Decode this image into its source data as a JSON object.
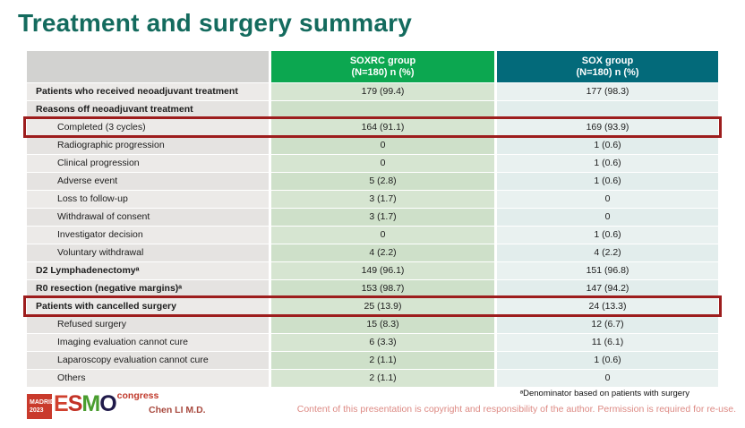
{
  "title": "Treatment and surgery summary",
  "table": {
    "columns": [
      {
        "name": "",
        "sub": ""
      },
      {
        "name": "SOXRC group",
        "sub": "(N=180)  n (%)"
      },
      {
        "name": "SOX group",
        "sub": "(N=180)  n (%)"
      }
    ],
    "rows": [
      {
        "label": "Patients who received neoadjuvant treatment",
        "soxrc": "179 (99.4)",
        "sox": "177 (98.3)",
        "bold": true,
        "highlight": false
      },
      {
        "label": "Reasons off neoadjuvant treatment",
        "soxrc": "",
        "sox": "",
        "bold": true,
        "highlight": false
      },
      {
        "label": "Completed (3 cycles)",
        "soxrc": "164 (91.1)",
        "sox": "169 (93.9)",
        "bold": false,
        "highlight": true
      },
      {
        "label": "Radiographic progression",
        "soxrc": "0",
        "sox": "1 (0.6)",
        "bold": false,
        "highlight": false
      },
      {
        "label": "Clinical progression",
        "soxrc": "0",
        "sox": "1 (0.6)",
        "bold": false,
        "highlight": false
      },
      {
        "label": "Adverse event",
        "soxrc": "5 (2.8)",
        "sox": "1 (0.6)",
        "bold": false,
        "highlight": false
      },
      {
        "label": "Loss to follow-up",
        "soxrc": "3 (1.7)",
        "sox": "0",
        "bold": false,
        "highlight": false
      },
      {
        "label": "Withdrawal of consent",
        "soxrc": "3 (1.7)",
        "sox": "0",
        "bold": false,
        "highlight": false
      },
      {
        "label": "Investigator decision",
        "soxrc": "0",
        "sox": "1 (0.6)",
        "bold": false,
        "highlight": false
      },
      {
        "label": "Voluntary withdrawal",
        "soxrc": "4 (2.2)",
        "sox": "4 (2.2)",
        "bold": false,
        "highlight": false
      },
      {
        "label": "D2 Lymphadenectomyᵃ",
        "soxrc": "149 (96.1)",
        "sox": "151 (96.8)",
        "bold": true,
        "highlight": false
      },
      {
        "label": "R0 resection (negative margins)ᵃ",
        "soxrc": "153 (98.7)",
        "sox": "147 (94.2)",
        "bold": true,
        "highlight": false
      },
      {
        "label": "Patients with cancelled surgery",
        "soxrc": "25 (13.9)",
        "sox": "24 (13.3)",
        "bold": true,
        "highlight": true
      },
      {
        "label": "Refused surgery",
        "soxrc": "15 (8.3)",
        "sox": "12 (6.7)",
        "bold": false,
        "highlight": false
      },
      {
        "label": "Imaging evaluation cannot cure",
        "soxrc": "6 (3.3)",
        "sox": "11 (6.1)",
        "bold": false,
        "highlight": false
      },
      {
        "label": "Laparoscopy evaluation cannot cure",
        "soxrc": "2 (1.1)",
        "sox": "1 (0.6)",
        "bold": false,
        "highlight": false
      },
      {
        "label": "Others",
        "soxrc": "2 (1.1)",
        "sox": "0",
        "bold": false,
        "highlight": false
      }
    ]
  },
  "footer": {
    "logo": {
      "badge_line1": "MADRID",
      "badge_line2": "2023",
      "letter_e": "E",
      "letter_s": "S",
      "letter_m": "M",
      "letter_o": "O",
      "congress": "congress"
    },
    "author": "Chen LI M.D.",
    "footnote": "ᵃDenominator based on patients with surgery",
    "copyright": "Content of this presentation is copyright and responsibility of the author. Permission is required for re-use."
  },
  "colors": {
    "title": "#146b5e",
    "soxrc_header": "#0ca750",
    "sox_header": "#036a7a",
    "highlight_border": "#9d1d1d",
    "copyright_text": "#dd8a84"
  }
}
